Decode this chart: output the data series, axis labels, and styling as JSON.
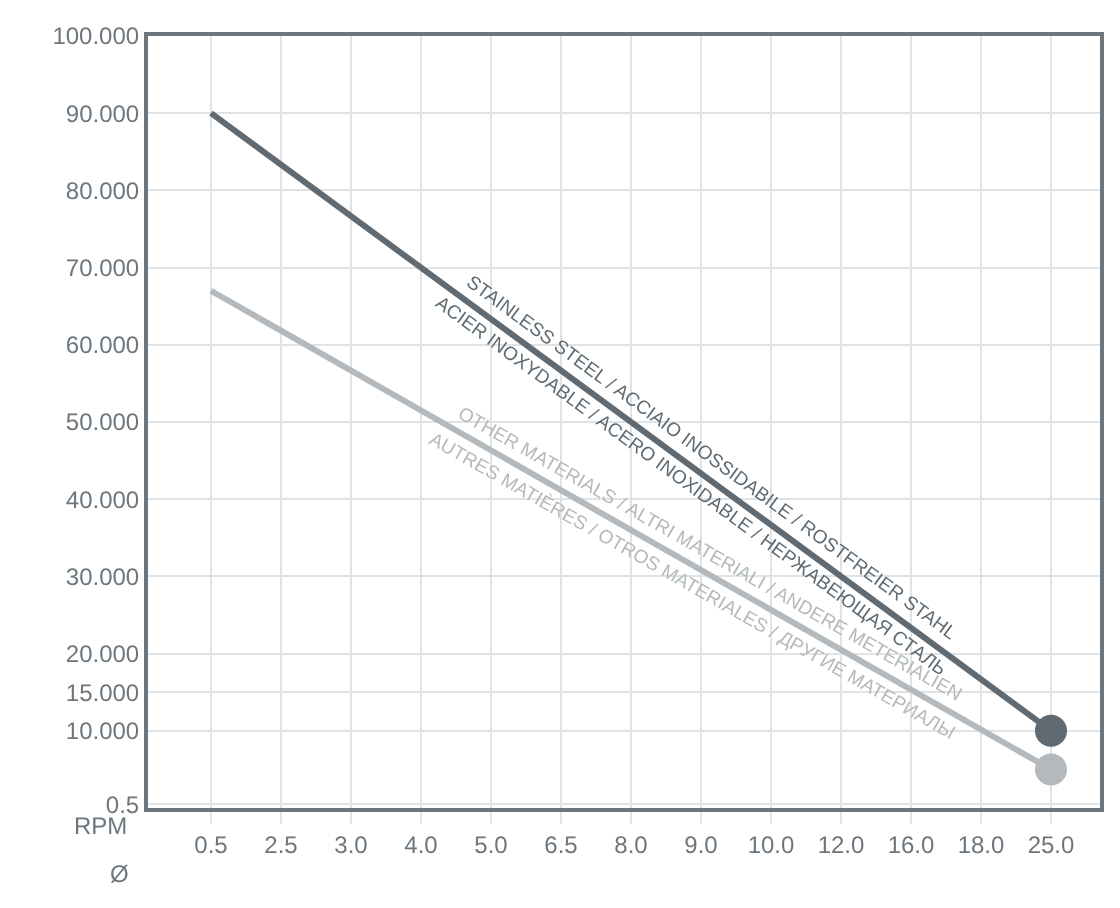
{
  "chart_data": {
    "type": "line",
    "xlabel": "Ø",
    "ylabel": "RPM",
    "categories": [
      "0.5",
      "2.5",
      "3.0",
      "4.0",
      "5.0",
      "6.5",
      "8.0",
      "9.0",
      "10.0",
      "12.0",
      "16.0",
      "18.0",
      "25.0"
    ],
    "series": [
      {
        "color": "#5f6a72",
        "x": [
          "0.5",
          "25.0"
        ],
        "values": [
          90,
          10
        ]
      },
      {
        "color": "#b3b9bd",
        "x": [
          "0.5",
          "25.0"
        ],
        "values": [
          67,
          5
        ]
      }
    ],
    "annotations": [
      "STAINLESS STEEL / ACCIAIO INOSSIDABILE / ROSTFREIER STAHL",
      "ACIER INOXYDABLE / ACERO INOXIDABLE / НЕРЖАВЕЮЩАЯ СТАЛЬ",
      "OTHER MATERIALS / ALTRI MATERIALI / ANDERE METERIALIEN",
      "AUTRES MATIÈRES / OTROS MATERIALES / ДРУГИЕ МАТЕРИАЛЫ"
    ],
    "ylim": [
      0,
      100
    ],
    "yticks": [
      {
        "value": 100,
        "label": "100.000"
      },
      {
        "value": 90,
        "label": "90.000"
      },
      {
        "value": 80,
        "label": "80.000"
      },
      {
        "value": 70,
        "label": "70.000"
      },
      {
        "value": 60,
        "label": "60.000"
      },
      {
        "value": 50,
        "label": "50.000"
      },
      {
        "value": 40,
        "label": "40.000"
      },
      {
        "value": 30,
        "label": "30.000"
      },
      {
        "value": 20,
        "label": "20.000"
      },
      {
        "value": 15,
        "label": "15.000"
      },
      {
        "value": 10,
        "label": "10.000"
      },
      0.5
    ],
    "grid": true,
    "marker": "circle",
    "line_style": "solid"
  }
}
